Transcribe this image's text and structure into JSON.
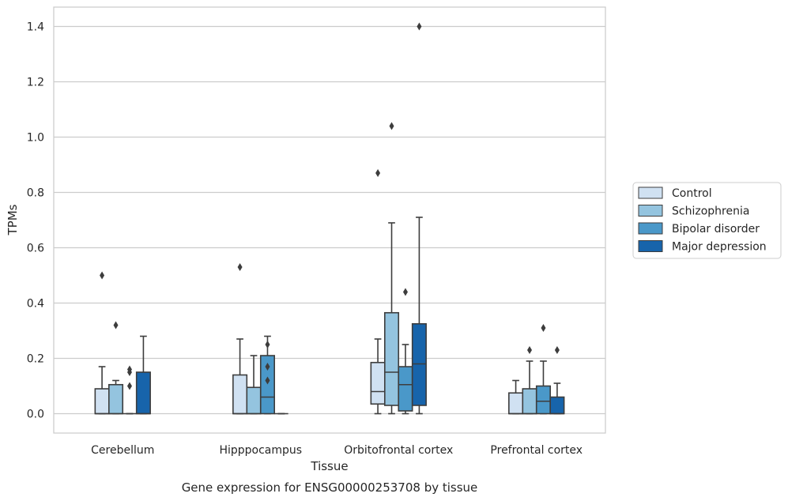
{
  "caption": "Gene expression for ENSG00000253708 by tissue",
  "chart_data": {
    "type": "box",
    "xlabel": "Tissue",
    "ylabel": "TPMs",
    "ylim": [
      -0.07,
      1.47
    ],
    "yticks": [
      "0.0",
      "0.2",
      "0.4",
      "0.6",
      "0.8",
      "1.0",
      "1.2",
      "1.4"
    ],
    "grid": "horizontal",
    "legend_position": "right",
    "categories": [
      "Cerebellum",
      "Hipppocampus",
      "Orbitofrontal cortex",
      "Prefrontal cortex"
    ],
    "series": [
      {
        "name": "Control",
        "color": "#d0e1f2",
        "boxes": [
          {
            "q1": 0.0,
            "median": 0.0,
            "q3": 0.09,
            "whisker_low": 0.0,
            "whisker_high": 0.17,
            "outliers": [
              0.5
            ]
          },
          {
            "q1": 0.0,
            "median": 0.0,
            "q3": 0.14,
            "whisker_low": 0.0,
            "whisker_high": 0.27,
            "outliers": [
              0.53
            ]
          },
          {
            "q1": 0.035,
            "median": 0.08,
            "q3": 0.185,
            "whisker_low": 0.0,
            "whisker_high": 0.27,
            "outliers": [
              0.87
            ]
          },
          {
            "q1": 0.0,
            "median": 0.0,
            "q3": 0.075,
            "whisker_low": 0.0,
            "whisker_high": 0.12,
            "outliers": []
          }
        ]
      },
      {
        "name": "Schizophrenia",
        "color": "#94c4df",
        "boxes": [
          {
            "q1": 0.0,
            "median": 0.0,
            "q3": 0.105,
            "whisker_low": 0.0,
            "whisker_high": 0.12,
            "outliers": [
              0.32
            ]
          },
          {
            "q1": 0.0,
            "median": 0.0,
            "q3": 0.095,
            "whisker_low": 0.0,
            "whisker_high": 0.21,
            "outliers": []
          },
          {
            "q1": 0.03,
            "median": 0.15,
            "q3": 0.365,
            "whisker_low": 0.0,
            "whisker_high": 0.69,
            "outliers": [
              1.04
            ]
          },
          {
            "q1": 0.0,
            "median": 0.0,
            "q3": 0.09,
            "whisker_low": 0.0,
            "whisker_high": 0.19,
            "outliers": [
              0.23
            ]
          }
        ]
      },
      {
        "name": "Bipolar disorder",
        "color": "#4a98c9",
        "boxes": [
          {
            "q1": 0.0,
            "median": 0.0,
            "q3": 0.0,
            "whisker_low": 0.0,
            "whisker_high": 0.0,
            "outliers": [
              0.1,
              0.15,
              0.16
            ]
          },
          {
            "q1": 0.0,
            "median": 0.06,
            "q3": 0.21,
            "whisker_low": 0.0,
            "whisker_high": 0.28,
            "outliers": [
              0.12,
              0.17,
              0.25
            ]
          },
          {
            "q1": 0.01,
            "median": 0.105,
            "q3": 0.17,
            "whisker_low": 0.0,
            "whisker_high": 0.25,
            "outliers": [
              0.44
            ]
          },
          {
            "q1": 0.0,
            "median": 0.045,
            "q3": 0.1,
            "whisker_low": 0.0,
            "whisker_high": 0.19,
            "outliers": [
              0.31
            ]
          }
        ]
      },
      {
        "name": "Major depression",
        "color": "#1764ab",
        "boxes": [
          {
            "q1": 0.0,
            "median": 0.0,
            "q3": 0.15,
            "whisker_low": 0.0,
            "whisker_high": 0.28,
            "outliers": []
          },
          {
            "q1": 0.0,
            "median": 0.0,
            "q3": 0.0,
            "whisker_low": 0.0,
            "whisker_high": 0.0,
            "outliers": []
          },
          {
            "q1": 0.03,
            "median": 0.18,
            "q3": 0.325,
            "whisker_low": 0.0,
            "whisker_high": 0.71,
            "outliers": [
              1.4
            ]
          },
          {
            "q1": 0.0,
            "median": 0.0,
            "q3": 0.06,
            "whisker_low": 0.0,
            "whisker_high": 0.11,
            "outliers": [
              0.23
            ]
          }
        ]
      }
    ]
  }
}
